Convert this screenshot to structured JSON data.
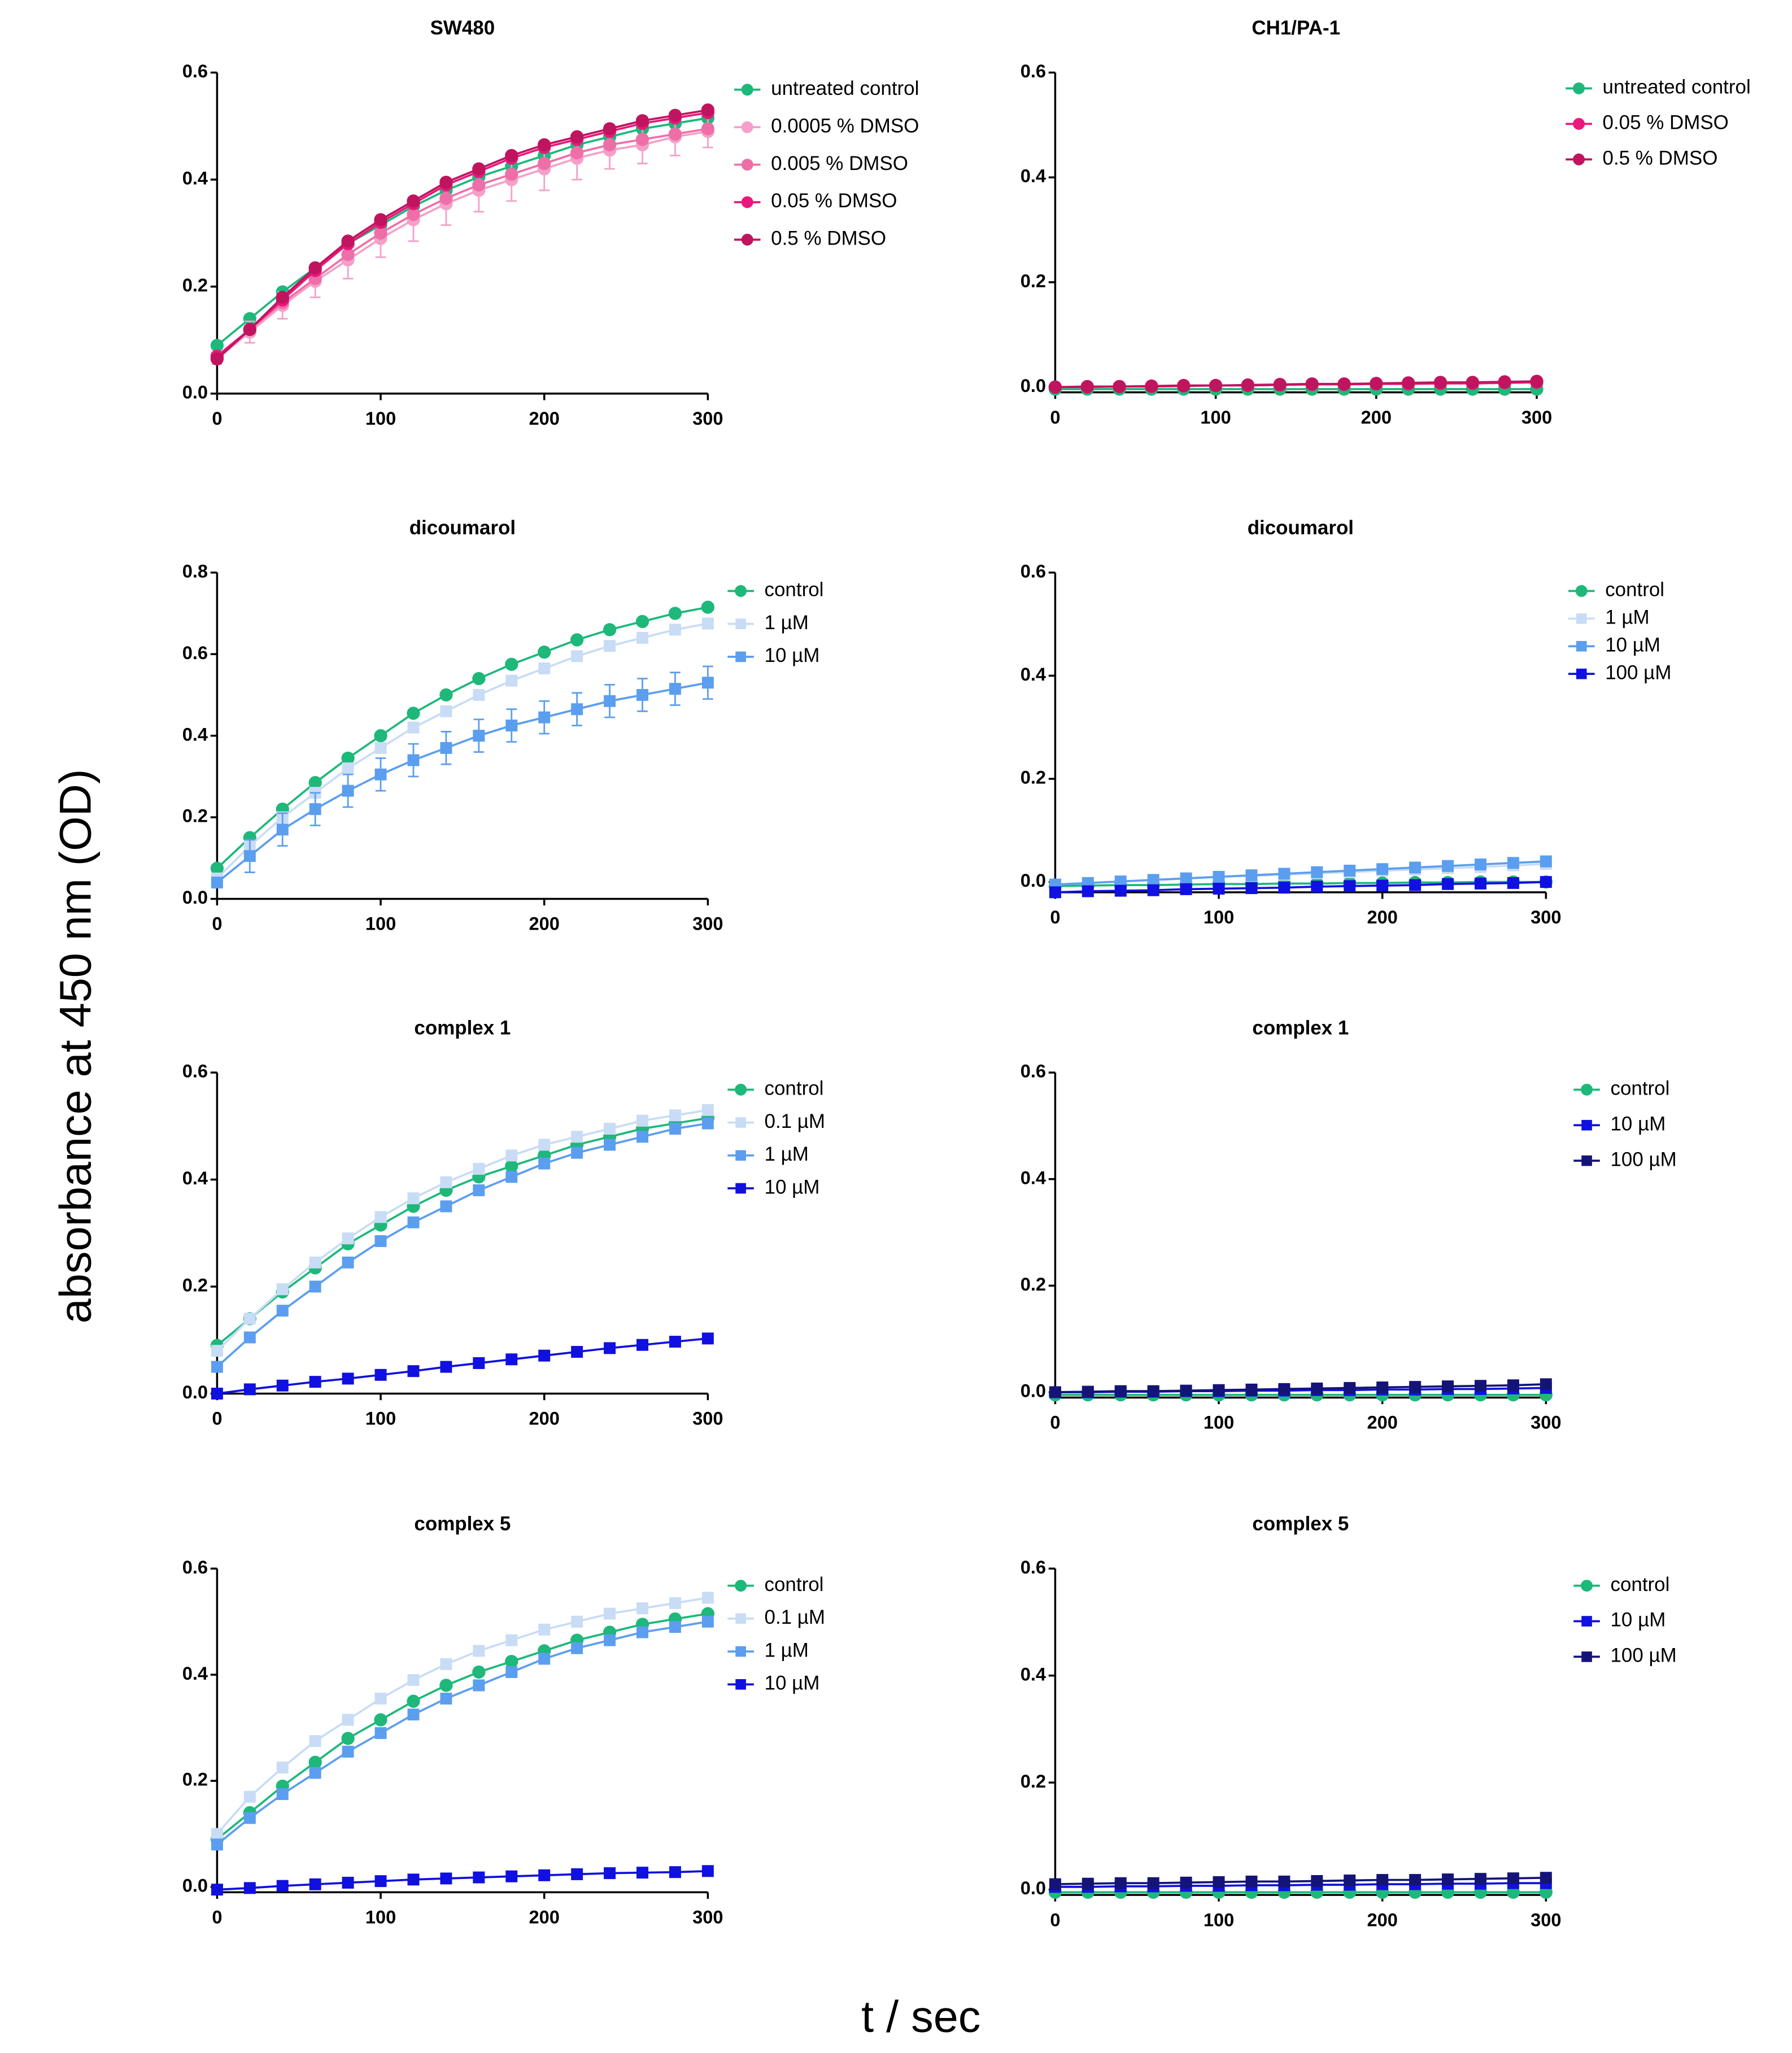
{
  "figure": {
    "ylabel": "absorbance at 450 nm  (OD)",
    "xlabel": "t / sec"
  },
  "chart_data": [
    {
      "type": "line",
      "title": "SW480",
      "x": [
        0,
        20,
        40,
        60,
        80,
        100,
        120,
        140,
        160,
        180,
        200,
        220,
        240,
        260,
        280,
        300
      ],
      "ylim": [
        0,
        0.6
      ],
      "yticks": [
        {
          "value": 0,
          "label": "0.0"
        },
        0.2,
        0.4,
        0.6
      ],
      "xlim": [
        0,
        300
      ],
      "xticks": [
        0,
        100,
        200,
        300
      ],
      "series": [
        {
          "name": "untreated control",
          "color": "#1db87a",
          "marker": "circle",
          "values": [
            0.09,
            0.14,
            0.19,
            0.235,
            0.28,
            0.315,
            0.35,
            0.38,
            0.405,
            0.425,
            0.445,
            0.465,
            0.48,
            0.495,
            0.505,
            0.515
          ]
        },
        {
          "name": "0.0005 % DMSO",
          "color": "#f4a0c8",
          "marker": "circle",
          "values": [
            0.065,
            0.115,
            0.165,
            0.21,
            0.25,
            0.29,
            0.325,
            0.355,
            0.38,
            0.4,
            0.42,
            0.44,
            0.455,
            0.465,
            0.48,
            0.49
          ],
          "errors": [
            0.01,
            0.02,
            0.025,
            0.03,
            0.035,
            0.035,
            0.04,
            0.04,
            0.04,
            0.04,
            0.04,
            0.04,
            0.035,
            0.035,
            0.035,
            0.03
          ]
        },
        {
          "name": "0.005 % DMSO",
          "color": "#ee6fa8",
          "marker": "circle",
          "values": [
            0.07,
            0.12,
            0.17,
            0.215,
            0.26,
            0.3,
            0.335,
            0.365,
            0.39,
            0.41,
            0.43,
            0.45,
            0.465,
            0.475,
            0.485,
            0.495
          ]
        },
        {
          "name": "0.05 % DMSO",
          "color": "#e8187e",
          "marker": "circle",
          "values": [
            0.07,
            0.12,
            0.175,
            0.23,
            0.28,
            0.32,
            0.355,
            0.39,
            0.415,
            0.44,
            0.46,
            0.475,
            0.49,
            0.505,
            0.515,
            0.525
          ]
        },
        {
          "name": "0.5 % DMSO",
          "color": "#c0145e",
          "marker": "circle",
          "values": [
            0.065,
            0.12,
            0.18,
            0.235,
            0.285,
            0.325,
            0.36,
            0.395,
            0.42,
            0.445,
            0.465,
            0.48,
            0.495,
            0.51,
            0.52,
            0.53
          ]
        }
      ]
    },
    {
      "type": "line",
      "title": "CH1/PA-1",
      "x": [
        0,
        20,
        40,
        60,
        80,
        100,
        120,
        140,
        160,
        180,
        200,
        220,
        240,
        260,
        280,
        300
      ],
      "ylim": [
        -0.01,
        0.6
      ],
      "yticks": [
        {
          "value": 0,
          "label": "0.0"
        },
        0.2,
        0.4,
        0.6
      ],
      "xlim": [
        0,
        300
      ],
      "xticks": [
        0,
        100,
        200,
        300
      ],
      "series": [
        {
          "name": "untreated control",
          "color": "#1db87a",
          "marker": "circle",
          "values": [
            -0.004,
            -0.004,
            -0.004,
            -0.004,
            -0.004,
            -0.004,
            -0.004,
            -0.004,
            -0.004,
            -0.004,
            -0.004,
            -0.004,
            -0.004,
            -0.004,
            -0.004,
            -0.004
          ]
        },
        {
          "name": "0.05 % DMSO",
          "color": "#e8187e",
          "marker": "circle",
          "values": [
            0,
            0,
            0.001,
            0.001,
            0.002,
            0.003,
            0.003,
            0.004,
            0.005,
            0.005,
            0.006,
            0.006,
            0.007,
            0.007,
            0.008,
            0.009
          ]
        },
        {
          "name": "0.5 % DMSO",
          "color": "#c0145e",
          "marker": "circle",
          "values": [
            0,
            0.001,
            0.001,
            0.002,
            0.003,
            0.003,
            0.004,
            0.005,
            0.006,
            0.006,
            0.007,
            0.008,
            0.009,
            0.009,
            0.01,
            0.011
          ]
        }
      ]
    },
    {
      "type": "line",
      "title": "dicoumarol",
      "x": [
        0,
        20,
        40,
        60,
        80,
        100,
        120,
        140,
        160,
        180,
        200,
        220,
        240,
        260,
        280,
        300
      ],
      "ylim": [
        0,
        0.8
      ],
      "yticks": [
        {
          "value": 0,
          "label": "0.0"
        },
        0.2,
        0.4,
        0.6,
        0.8
      ],
      "xlim": [
        0,
        300
      ],
      "xticks": [
        0,
        100,
        200,
        300
      ],
      "series": [
        {
          "name": "control",
          "color": "#1db87a",
          "marker": "circle",
          "values": [
            0.075,
            0.15,
            0.22,
            0.285,
            0.345,
            0.4,
            0.455,
            0.5,
            0.54,
            0.575,
            0.605,
            0.635,
            0.66,
            0.68,
            0.7,
            0.715
          ]
        },
        {
          "name": "1 µM",
          "color": "#c8dcf5",
          "marker": "square",
          "values": [
            0.05,
            0.13,
            0.2,
            0.26,
            0.32,
            0.37,
            0.42,
            0.46,
            0.5,
            0.535,
            0.565,
            0.595,
            0.62,
            0.64,
            0.66,
            0.675
          ]
        },
        {
          "name": "10 µM",
          "color": "#5b9ef0",
          "marker": "square",
          "values": [
            0.04,
            0.105,
            0.17,
            0.22,
            0.265,
            0.305,
            0.34,
            0.37,
            0.4,
            0.425,
            0.445,
            0.465,
            0.485,
            0.5,
            0.515,
            0.53
          ],
          "errors": [
            0.01,
            0.04,
            0.04,
            0.04,
            0.04,
            0.04,
            0.04,
            0.04,
            0.04,
            0.04,
            0.04,
            0.04,
            0.04,
            0.04,
            0.04,
            0.04
          ]
        }
      ]
    },
    {
      "type": "line",
      "title": "dicoumarol",
      "x": [
        0,
        20,
        40,
        60,
        80,
        100,
        120,
        140,
        160,
        180,
        200,
        220,
        240,
        260,
        280,
        300
      ],
      "ylim": [
        -0.02,
        0.6
      ],
      "yticks": [
        {
          "value": 0,
          "label": "0.0"
        },
        0.2,
        0.4,
        0.6
      ],
      "xlim": [
        0,
        300
      ],
      "xticks": [
        0,
        100,
        200,
        300
      ],
      "series": [
        {
          "name": "control",
          "color": "#1db87a",
          "marker": "circle",
          "values": [
            -0.008,
            -0.007,
            -0.006,
            -0.006,
            -0.005,
            -0.004,
            -0.004,
            -0.003,
            -0.003,
            -0.002,
            -0.002,
            -0.001,
            -0.001,
            0,
            0,
            0
          ]
        },
        {
          "name": "1 µM",
          "color": "#c8dcf5",
          "marker": "square",
          "values": [
            -0.005,
            -0.002,
            0.001,
            0.004,
            0.007,
            0.01,
            0.012,
            0.014,
            0.017,
            0.019,
            0.022,
            0.024,
            0.027,
            0.029,
            0.032,
            0.035
          ]
        },
        {
          "name": "10 µM",
          "color": "#5b9ef0",
          "marker": "square",
          "values": [
            -0.005,
            -0.002,
            0.001,
            0.004,
            0.007,
            0.01,
            0.013,
            0.016,
            0.019,
            0.022,
            0.025,
            0.028,
            0.031,
            0.034,
            0.037,
            0.04
          ]
        },
        {
          "name": "100 µM",
          "color": "#1010e0",
          "marker": "square",
          "values": [
            -0.02,
            -0.018,
            -0.017,
            -0.016,
            -0.014,
            -0.013,
            -0.012,
            -0.011,
            -0.009,
            -0.008,
            -0.007,
            -0.006,
            -0.004,
            -0.003,
            -0.002,
            0
          ]
        }
      ]
    },
    {
      "type": "line",
      "title": "complex 1",
      "x": [
        0,
        20,
        40,
        60,
        80,
        100,
        120,
        140,
        160,
        180,
        200,
        220,
        240,
        260,
        280,
        300
      ],
      "ylim": [
        0,
        0.6
      ],
      "yticks": [
        {
          "value": 0,
          "label": "0.0"
        },
        0.2,
        0.4,
        0.6
      ],
      "xlim": [
        0,
        300
      ],
      "xticks": [
        0,
        100,
        200,
        300
      ],
      "series": [
        {
          "name": "control",
          "color": "#1db87a",
          "marker": "circle",
          "values": [
            0.09,
            0.14,
            0.19,
            0.235,
            0.28,
            0.315,
            0.35,
            0.38,
            0.405,
            0.425,
            0.445,
            0.465,
            0.48,
            0.495,
            0.505,
            0.515
          ]
        },
        {
          "name": "0.1 µM",
          "color": "#c8dcf5",
          "marker": "square",
          "values": [
            0.08,
            0.14,
            0.195,
            0.245,
            0.29,
            0.33,
            0.365,
            0.395,
            0.42,
            0.445,
            0.465,
            0.48,
            0.495,
            0.51,
            0.52,
            0.53
          ]
        },
        {
          "name": "1 µM",
          "color": "#5b9ef0",
          "marker": "square",
          "values": [
            0.05,
            0.105,
            0.155,
            0.2,
            0.245,
            0.285,
            0.32,
            0.35,
            0.38,
            0.405,
            0.43,
            0.45,
            0.465,
            0.48,
            0.495,
            0.505
          ]
        },
        {
          "name": "10 µM",
          "color": "#1010e0",
          "marker": "square",
          "values": [
            0,
            0.008,
            0.015,
            0.022,
            0.028,
            0.035,
            0.042,
            0.05,
            0.057,
            0.064,
            0.071,
            0.078,
            0.085,
            0.091,
            0.097,
            0.103
          ]
        }
      ]
    },
    {
      "type": "line",
      "title": "complex 1",
      "x": [
        0,
        20,
        40,
        60,
        80,
        100,
        120,
        140,
        160,
        180,
        200,
        220,
        240,
        260,
        280,
        300
      ],
      "ylim": [
        -0.01,
        0.6
      ],
      "yticks": [
        {
          "value": 0,
          "label": "0.0"
        },
        0.2,
        0.4,
        0.6
      ],
      "xlim": [
        0,
        300
      ],
      "xticks": [
        0,
        100,
        200,
        300
      ],
      "series": [
        {
          "name": "control",
          "color": "#1db87a",
          "marker": "circle",
          "values": [
            -0.005,
            -0.005,
            -0.005,
            -0.005,
            -0.005,
            -0.005,
            -0.005,
            -0.005,
            -0.005,
            -0.005,
            -0.005,
            -0.005,
            -0.005,
            -0.005,
            -0.005,
            -0.005
          ]
        },
        {
          "name": "10 µM",
          "color": "#1010e0",
          "marker": "square",
          "values": [
            0,
            0,
            0.001,
            0.001,
            0.002,
            0.002,
            0.003,
            0.003,
            0.004,
            0.004,
            0.005,
            0.005,
            0.006,
            0.006,
            0.007,
            0.008
          ]
        },
        {
          "name": "100 µM",
          "color": "#141478",
          "marker": "square",
          "values": [
            0,
            0.001,
            0.002,
            0.002,
            0.003,
            0.004,
            0.005,
            0.006,
            0.007,
            0.008,
            0.009,
            0.01,
            0.011,
            0.012,
            0.013,
            0.015
          ]
        }
      ]
    },
    {
      "type": "line",
      "title": "complex 5",
      "x": [
        0,
        20,
        40,
        60,
        80,
        100,
        120,
        140,
        160,
        180,
        200,
        220,
        240,
        260,
        280,
        300
      ],
      "ylim": [
        -0.01,
        0.6
      ],
      "yticks": [
        {
          "value": 0,
          "label": "0.0"
        },
        0.2,
        0.4,
        0.6
      ],
      "xlim": [
        0,
        300
      ],
      "xticks": [
        0,
        100,
        200,
        300
      ],
      "series": [
        {
          "name": "control",
          "color": "#1db87a",
          "marker": "circle",
          "values": [
            0.09,
            0.14,
            0.19,
            0.235,
            0.28,
            0.315,
            0.35,
            0.38,
            0.405,
            0.425,
            0.445,
            0.465,
            0.48,
            0.495,
            0.505,
            0.515
          ]
        },
        {
          "name": "0.1 µM",
          "color": "#c8dcf5",
          "marker": "square",
          "values": [
            0.1,
            0.17,
            0.225,
            0.275,
            0.315,
            0.355,
            0.39,
            0.42,
            0.445,
            0.465,
            0.485,
            0.5,
            0.515,
            0.525,
            0.535,
            0.545
          ]
        },
        {
          "name": "1 µM",
          "color": "#5b9ef0",
          "marker": "square",
          "values": [
            0.08,
            0.13,
            0.175,
            0.215,
            0.255,
            0.29,
            0.325,
            0.355,
            0.38,
            0.405,
            0.43,
            0.45,
            0.465,
            0.48,
            0.49,
            0.5
          ]
        },
        {
          "name": "10 µM",
          "color": "#1010e0",
          "marker": "square",
          "values": [
            -0.005,
            -0.002,
            0.002,
            0.005,
            0.008,
            0.011,
            0.014,
            0.016,
            0.018,
            0.02,
            0.022,
            0.024,
            0.026,
            0.027,
            0.028,
            0.03
          ]
        }
      ]
    },
    {
      "type": "line",
      "title": "complex 5",
      "x": [
        0,
        20,
        40,
        60,
        80,
        100,
        120,
        140,
        160,
        180,
        200,
        220,
        240,
        260,
        280,
        300
      ],
      "ylim": [
        -0.01,
        0.6
      ],
      "yticks": [
        {
          "value": 0,
          "label": "0.0"
        },
        0.2,
        0.4,
        0.6
      ],
      "xlim": [
        0,
        300
      ],
      "xticks": [
        0,
        100,
        200,
        300
      ],
      "series": [
        {
          "name": "control",
          "color": "#1db87a",
          "marker": "circle",
          "values": [
            -0.005,
            -0.005,
            -0.005,
            -0.005,
            -0.005,
            -0.005,
            -0.005,
            -0.005,
            -0.005,
            -0.005,
            -0.005,
            -0.005,
            -0.005,
            -0.005,
            -0.005,
            -0.005
          ]
        },
        {
          "name": "10 µM",
          "color": "#1010e0",
          "marker": "square",
          "values": [
            0.005,
            0.005,
            0.006,
            0.006,
            0.007,
            0.007,
            0.008,
            0.008,
            0.009,
            0.009,
            0.01,
            0.01,
            0.011,
            0.011,
            0.012,
            0.012
          ]
        },
        {
          "name": "100 µM",
          "color": "#141478",
          "marker": "square",
          "values": [
            0.01,
            0.011,
            0.012,
            0.012,
            0.013,
            0.014,
            0.015,
            0.015,
            0.016,
            0.017,
            0.018,
            0.018,
            0.019,
            0.02,
            0.021,
            0.022
          ]
        }
      ]
    }
  ]
}
